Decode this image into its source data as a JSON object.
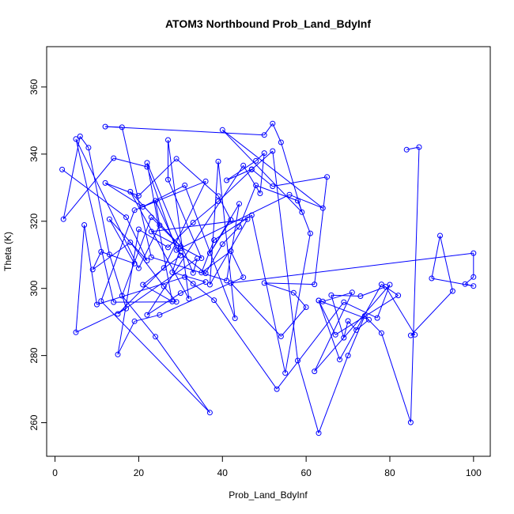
{
  "chart_data": {
    "type": "line",
    "title": "ATOM3 Northbound Prob_Land_BdyInf",
    "xlabel": "Prob_Land_BdyInf",
    "ylabel": "Theta (K)",
    "xlim": [
      -2,
      104
    ],
    "ylim": [
      250,
      372
    ],
    "xticks": [
      0,
      20,
      40,
      60,
      80,
      100
    ],
    "yticks": [
      260,
      280,
      300,
      320,
      340,
      360
    ],
    "grid": false,
    "legend": "none",
    "color": "#0000ff",
    "marker": "open-circle",
    "series": [
      {
        "x": [
          1.7,
          17,
          22,
          13,
          19,
          11,
          9,
          18,
          26,
          29,
          14,
          5,
          20,
          25,
          24,
          30,
          21,
          28,
          22,
          33,
          34,
          15,
          26,
          36,
          19,
          11,
          37,
          24,
          16,
          23,
          30,
          18,
          32,
          27,
          27,
          35,
          23,
          46,
          37,
          39,
          43,
          31,
          21,
          12,
          20,
          29,
          39,
          42,
          37,
          44,
          41,
          23,
          16,
          12,
          50,
          52,
          54,
          59,
          40,
          64,
          56,
          30,
          28,
          36,
          30,
          22,
          45,
          49,
          50,
          48,
          41,
          47,
          52,
          65,
          62,
          50,
          57,
          60,
          54,
          42,
          100,
          100,
          98,
          100,
          90,
          92,
          95,
          85,
          86,
          79,
          73,
          66,
          69,
          70,
          72,
          75,
          63,
          68,
          78,
          82,
          67,
          63,
          64,
          71,
          62,
          80,
          77,
          69,
          53,
          38,
          33,
          31,
          10,
          7,
          5,
          17,
          13,
          8,
          6,
          2,
          14,
          22,
          29,
          36,
          40,
          44,
          48,
          58,
          61,
          55,
          47,
          38,
          35,
          42,
          45,
          25,
          19,
          15,
          20,
          27,
          33,
          39,
          47,
          52,
          58,
          63,
          70,
          74,
          78,
          85,
          87,
          84
        ],
        "y": [
          335.4,
          321.2,
          308.3,
          320.6,
          307.4,
          310.9,
          305.6,
          313.7,
          300.6,
          296,
          295.9,
          344.5,
          306,
          318.8,
          326.1,
          309.8,
          301.1,
          296.1,
          337.4,
          304.6,
          308.9,
          292.4,
          306.1,
          331.9,
          323.3,
          296.2,
          263,
          285.6,
          297.8,
          321.2,
          312.5,
          328.8,
          296.9,
          344.2,
          332.4,
          309,
          316.9,
          320.6,
          301.1,
          337.8,
          291.1,
          330.7,
          324.3,
          331.4,
          327.6,
          338.6,
          327.5,
          320.4,
          310.5,
          325.2,
          302.3,
          309.3,
          348,
          348.2,
          345.7,
          349.1,
          343.5,
          322.7,
          347.2,
          323.9,
          327.9,
          312,
          304.8,
          301.9,
          298.6,
          292.1,
          336.6,
          328.3,
          340.3,
          338,
          332.2,
          335.5,
          330.4,
          333.2,
          301.2,
          301.6,
          298.7,
          294.4,
          285.7,
          301.6,
          310.5,
          303.4,
          301.3,
          300.7,
          303,
          315.7,
          299.2,
          286,
          286.2,
          300.5,
          297.7,
          298,
          285.3,
          290.3,
          287.6,
          290.7,
          296.4,
          278.8,
          301.2,
          297.9,
          286.2,
          296.4,
          296.1,
          298.8,
          275.3,
          301.1,
          291.2,
          295.9,
          270,
          296.5,
          301.4,
          303.4,
          295.2,
          318.9,
          286.9,
          294,
          310.1,
          341.9,
          345.3,
          320.6,
          338.8,
          336.2,
          311.4,
          304.5,
          313.2,
          318.3,
          330.7,
          326.1,
          316.4,
          274.8,
          321.8,
          314.4,
          304.7,
          311.1,
          303.3,
          292.1,
          290.2,
          280.3,
          317.6,
          312.2,
          319.6,
          325.9,
          335.4,
          340.9,
          278.5,
          256.9,
          280,
          291.8,
          286.7,
          260.1,
          342.1,
          341.3
        ]
      }
    ]
  }
}
